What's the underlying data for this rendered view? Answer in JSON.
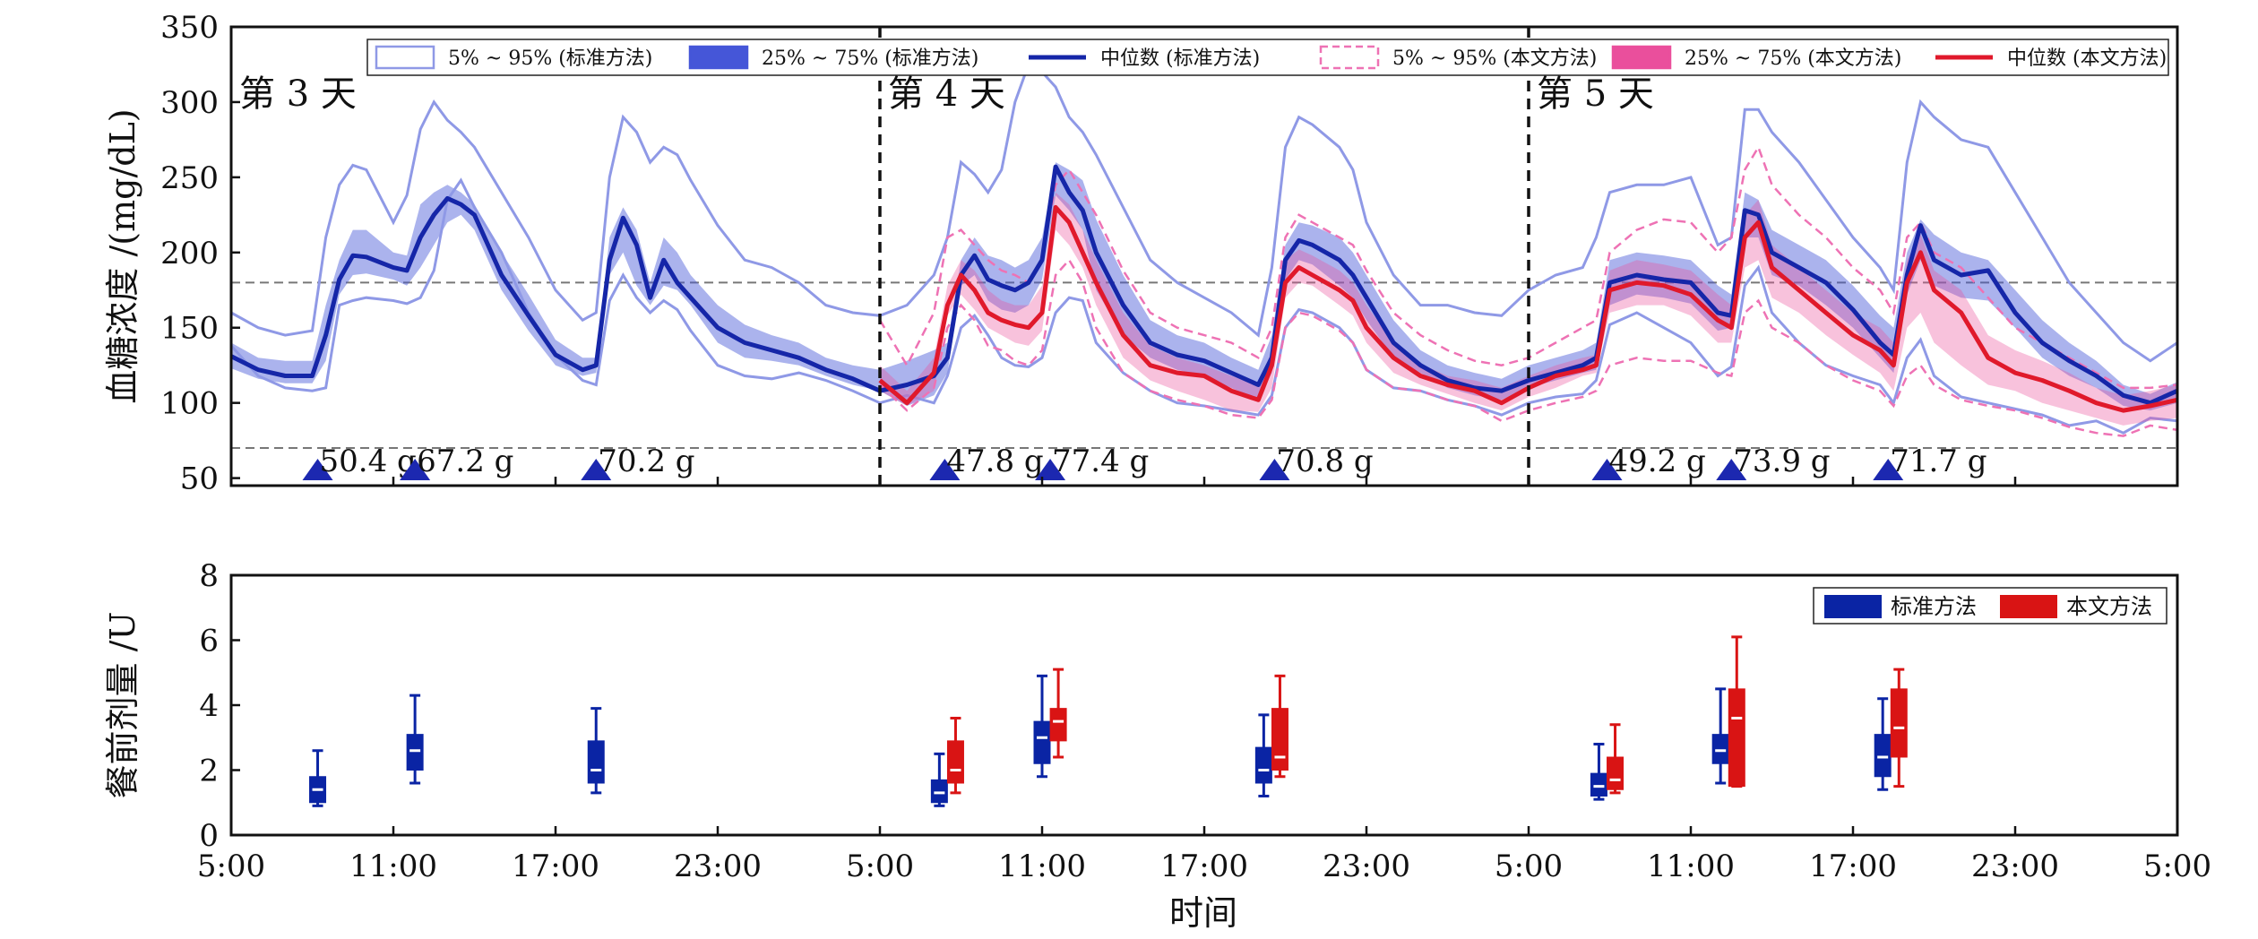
{
  "colors": {
    "std_band95": "#8f99e6",
    "std_band50": "#4556d8",
    "std_median": "#1526a8",
    "new_band95": "#ee72b4",
    "new_band50": "#ea4f9c",
    "new_median": "#e0192b",
    "box_std": "#0a24a4",
    "box_new": "#d91414",
    "meal_marker": "#1c28b0",
    "guide_line": "#777777"
  },
  "chart_data": [
    {
      "type": "area",
      "ylabel": "血糖浓度 /(mg/dL)",
      "ylim": [
        45,
        350
      ],
      "yticks": [
        50,
        100,
        150,
        200,
        250,
        300,
        350
      ],
      "hlines": [
        70,
        180
      ],
      "day_dividers": [
        24,
        48
      ],
      "day_labels": [
        {
          "label": "第 3 天",
          "x": 0.3
        },
        {
          "label": "第 4 天",
          "x": 24.3
        },
        {
          "label": "第 5 天",
          "x": 48.3
        }
      ],
      "legend": {
        "position": "top",
        "entries": [
          "5% ~ 95% (标准方法)",
          "25% ~ 75% (标准方法)",
          "中位数 (标准方法)",
          "5% ~ 95% (本文方法)",
          "25% ~ 75% (本文方法)",
          "中位数 (本文方法)"
        ]
      },
      "meals": [
        {
          "x": 3.2,
          "label": "50.4 g"
        },
        {
          "x": 6.8,
          "label": "67.2 g"
        },
        {
          "x": 13.5,
          "label": "70.2 g"
        },
        {
          "x": 26.4,
          "label": "47.8 g"
        },
        {
          "x": 30.3,
          "label": "77.4 g"
        },
        {
          "x": 38.6,
          "label": "70.8 g"
        },
        {
          "x": 50.9,
          "label": "49.2 g"
        },
        {
          "x": 55.5,
          "label": "73.9 g"
        },
        {
          "x": 61.3,
          "label": "71.7 g"
        }
      ],
      "standard_method": {
        "x": [
          0,
          1,
          2,
          3,
          3.5,
          4,
          4.5,
          5,
          6,
          6.5,
          7,
          7.5,
          8,
          8.5,
          9,
          10,
          11,
          12,
          13,
          13.5,
          14,
          14.5,
          15,
          15.5,
          16,
          16.5,
          17,
          18,
          19,
          20,
          21,
          22,
          23,
          24,
          25,
          26,
          26.5,
          27,
          27.5,
          28,
          28.5,
          29,
          29.5,
          30,
          30.5,
          31,
          31.5,
          32,
          33,
          34,
          35,
          36,
          37,
          38,
          38.5,
          39,
          39.5,
          40,
          41,
          41.5,
          42,
          43,
          44,
          45,
          46,
          47,
          48,
          49,
          50,
          50.5,
          51,
          52,
          53,
          54,
          55,
          55.5,
          56,
          56.5,
          57,
          58,
          59,
          60,
          61,
          61.5,
          62,
          62.5,
          63,
          64,
          65,
          66,
          67,
          68,
          69,
          70,
          71,
          72
        ],
        "p5": [
          138,
          118,
          110,
          108,
          110,
          165,
          168,
          170,
          168,
          166,
          170,
          188,
          235,
          248,
          230,
          200,
          160,
          132,
          115,
          112,
          168,
          185,
          170,
          160,
          168,
          162,
          148,
          125,
          118,
          116,
          120,
          115,
          108,
          100,
          105,
          100,
          118,
          150,
          158,
          145,
          130,
          125,
          124,
          130,
          160,
          170,
          168,
          140,
          120,
          108,
          100,
          98,
          95,
          92,
          105,
          150,
          162,
          160,
          150,
          140,
          122,
          110,
          108,
          102,
          98,
          92,
          100,
          104,
          106,
          115,
          152,
          160,
          150,
          140,
          118,
          124,
          178,
          190,
          160,
          140,
          125,
          118,
          112,
          100,
          130,
          142,
          118,
          104,
          100,
          96,
          92,
          85,
          88,
          80,
          90,
          88
        ],
        "p25": [
          123,
          116,
          113,
          113,
          128,
          172,
          185,
          186,
          182,
          178,
          190,
          205,
          220,
          225,
          215,
          175,
          148,
          125,
          118,
          120,
          185,
          200,
          178,
          165,
          178,
          175,
          165,
          140,
          130,
          128,
          125,
          118,
          112,
          108,
          98,
          105,
          120,
          178,
          185,
          168,
          162,
          160,
          165,
          182,
          238,
          228,
          215,
          175,
          145,
          130,
          122,
          118,
          110,
          102,
          120,
          182,
          195,
          192,
          178,
          170,
          155,
          130,
          120,
          110,
          105,
          102,
          110,
          115,
          120,
          122,
          165,
          172,
          170,
          166,
          148,
          150,
          210,
          210,
          185,
          178,
          165,
          150,
          130,
          120,
          172,
          195,
          178,
          170,
          168,
          150,
          130,
          118,
          110,
          98,
          95,
          100
        ],
        "median": [
          131,
          122,
          118,
          118,
          145,
          182,
          198,
          197,
          190,
          188,
          210,
          225,
          236,
          232,
          225,
          185,
          158,
          132,
          122,
          125,
          195,
          223,
          205,
          170,
          195,
          180,
          170,
          150,
          140,
          135,
          130,
          122,
          116,
          108,
          112,
          118,
          130,
          185,
          198,
          182,
          178,
          175,
          180,
          195,
          257,
          240,
          228,
          200,
          165,
          140,
          132,
          128,
          120,
          112,
          130,
          195,
          208,
          205,
          195,
          185,
          170,
          140,
          125,
          115,
          110,
          108,
          115,
          120,
          125,
          130,
          180,
          185,
          182,
          180,
          160,
          158,
          228,
          225,
          200,
          190,
          180,
          162,
          140,
          132,
          185,
          218,
          195,
          185,
          188,
          160,
          140,
          128,
          118,
          105,
          100,
          108
        ],
        "p75": [
          140,
          130,
          128,
          128,
          165,
          195,
          215,
          215,
          200,
          198,
          232,
          240,
          245,
          240,
          232,
          200,
          172,
          142,
          130,
          130,
          210,
          230,
          215,
          180,
          210,
          200,
          185,
          165,
          152,
          145,
          140,
          130,
          125,
          122,
          128,
          135,
          140,
          195,
          210,
          198,
          195,
          190,
          195,
          210,
          260,
          255,
          248,
          222,
          185,
          155,
          145,
          140,
          130,
          122,
          145,
          205,
          220,
          218,
          210,
          200,
          185,
          155,
          135,
          125,
          120,
          116,
          125,
          130,
          135,
          140,
          195,
          200,
          198,
          195,
          178,
          172,
          240,
          235,
          215,
          205,
          195,
          178,
          158,
          150,
          200,
          222,
          212,
          200,
          195,
          175,
          155,
          140,
          128,
          112,
          106,
          114
        ],
        "p95": [
          160,
          150,
          145,
          148,
          210,
          245,
          258,
          255,
          220,
          238,
          282,
          300,
          288,
          280,
          270,
          240,
          210,
          175,
          155,
          160,
          250,
          290,
          280,
          260,
          270,
          265,
          248,
          218,
          195,
          190,
          180,
          165,
          160,
          158,
          165,
          185,
          210,
          260,
          252,
          240,
          255,
          300,
          325,
          320,
          310,
          290,
          280,
          265,
          230,
          195,
          180,
          170,
          160,
          145,
          190,
          270,
          290,
          285,
          270,
          255,
          220,
          185,
          165,
          165,
          160,
          158,
          175,
          185,
          190,
          210,
          240,
          245,
          245,
          250,
          205,
          210,
          295,
          295,
          280,
          260,
          235,
          210,
          190,
          175,
          260,
          300,
          290,
          275,
          270,
          240,
          210,
          180,
          160,
          140,
          128,
          140
        ]
      },
      "proposed_method": {
        "x": [
          24,
          25,
          26,
          26.5,
          27,
          27.5,
          28,
          28.5,
          29,
          29.5,
          30,
          30.5,
          31,
          31.5,
          32,
          33,
          34,
          35,
          36,
          37,
          38,
          38.5,
          39,
          39.5,
          40,
          41,
          41.5,
          42,
          43,
          44,
          45,
          46,
          47,
          48,
          49,
          50,
          50.5,
          51,
          52,
          53,
          54,
          55,
          55.5,
          56,
          56.5,
          57,
          58,
          59,
          60,
          61,
          61.5,
          62,
          62.5,
          63,
          64,
          65,
          66,
          67,
          68,
          69,
          70,
          71,
          72
        ],
        "p5": [
          112,
          95,
          110,
          150,
          165,
          155,
          138,
          135,
          128,
          125,
          135,
          185,
          195,
          180,
          150,
          120,
          108,
          102,
          98,
          92,
          90,
          102,
          150,
          160,
          158,
          148,
          140,
          122,
          110,
          108,
          102,
          98,
          88,
          95,
          100,
          104,
          108,
          125,
          130,
          128,
          128,
          120,
          118,
          160,
          168,
          150,
          140,
          125,
          115,
          108,
          98,
          118,
          125,
          112,
          102,
          98,
          95,
          90,
          84,
          80,
          78,
          85,
          82
        ],
        "p25": [
          108,
          98,
          108,
          158,
          172,
          162,
          150,
          145,
          140,
          138,
          148,
          215,
          205,
          190,
          165,
          130,
          115,
          108,
          102,
          95,
          94,
          110,
          170,
          180,
          178,
          165,
          158,
          140,
          120,
          112,
          106,
          100,
          95,
          104,
          110,
          118,
          120,
          160,
          165,
          165,
          158,
          140,
          140,
          190,
          195,
          170,
          160,
          145,
          132,
          120,
          108,
          150,
          160,
          140,
          125,
          112,
          108,
          100,
          95,
          90,
          85,
          88,
          90
        ],
        "median": [
          115,
          100,
          120,
          165,
          185,
          175,
          160,
          155,
          152,
          150,
          160,
          230,
          220,
          200,
          180,
          145,
          125,
          120,
          118,
          108,
          102,
          125,
          180,
          190,
          185,
          175,
          168,
          150,
          130,
          118,
          112,
          108,
          100,
          110,
          118,
          122,
          125,
          175,
          180,
          178,
          172,
          155,
          150,
          210,
          220,
          190,
          175,
          160,
          145,
          135,
          125,
          180,
          200,
          175,
          160,
          130,
          120,
          115,
          108,
          100,
          95,
          98,
          102
        ],
        "p75": [
          125,
          108,
          130,
          178,
          195,
          188,
          175,
          168,
          165,
          165,
          178,
          240,
          232,
          215,
          195,
          160,
          138,
          130,
          125,
          118,
          112,
          135,
          195,
          202,
          198,
          188,
          180,
          165,
          140,
          126,
          118,
          115,
          110,
          118,
          125,
          130,
          132,
          188,
          195,
          192,
          188,
          172,
          165,
          225,
          235,
          205,
          190,
          175,
          160,
          150,
          140,
          195,
          212,
          188,
          175,
          145,
          135,
          128,
          120,
          110,
          105,
          108,
          112
        ],
        "p95": [
          155,
          125,
          160,
          210,
          215,
          205,
          195,
          188,
          185,
          180,
          195,
          245,
          255,
          240,
          225,
          188,
          160,
          150,
          145,
          140,
          130,
          150,
          210,
          225,
          220,
          210,
          205,
          188,
          160,
          145,
          135,
          128,
          125,
          130,
          140,
          150,
          155,
          200,
          215,
          222,
          220,
          200,
          210,
          255,
          270,
          245,
          225,
          210,
          190,
          175,
          160,
          210,
          220,
          200,
          190,
          170,
          150,
          140,
          130,
          120,
          110,
          110,
          112
        ]
      },
      "series": [
        {
          "name": "5% ~ 95% (标准方法)"
        },
        {
          "name": "25% ~ 75% (标准方法)"
        },
        {
          "name": "中位数 (标准方法)"
        },
        {
          "name": "5% ~ 95% (本文方法)"
        },
        {
          "name": "25% ~ 75% (本文方法)"
        },
        {
          "name": "中位数 (本文方法)"
        }
      ]
    },
    {
      "type": "box",
      "xlabel": "时间",
      "ylabel": "餐前剂量 /U",
      "ylim": [
        0,
        8
      ],
      "yticks": [
        0,
        2,
        4,
        6,
        8
      ],
      "xlim": [
        0,
        72
      ],
      "xticks": [
        0,
        6,
        12,
        18,
        24,
        30,
        36,
        42,
        48,
        54,
        60,
        66,
        72
      ],
      "xtick_labels": [
        "5:00",
        "11:00",
        "17:00",
        "23:00",
        "5:00",
        "11:00",
        "17:00",
        "23:00",
        "5:00",
        "11:00",
        "17:00",
        "23:00",
        "5:00"
      ],
      "legend": {
        "position": "top-right",
        "entries": [
          "标准方法",
          "本文方法"
        ]
      },
      "standard_method": [
        {
          "x": 3.2,
          "min": 0.9,
          "q1": 1.0,
          "median": 1.4,
          "q3": 1.8,
          "max": 2.6
        },
        {
          "x": 6.8,
          "min": 1.6,
          "q1": 2.0,
          "median": 2.6,
          "q3": 3.1,
          "max": 4.3
        },
        {
          "x": 13.5,
          "min": 1.3,
          "q1": 1.6,
          "median": 2.0,
          "q3": 2.9,
          "max": 3.9
        },
        {
          "x": 26.2,
          "min": 0.9,
          "q1": 1.0,
          "median": 1.3,
          "q3": 1.7,
          "max": 2.5
        },
        {
          "x": 30.0,
          "min": 1.8,
          "q1": 2.2,
          "median": 3.0,
          "q3": 3.5,
          "max": 4.9
        },
        {
          "x": 38.2,
          "min": 1.2,
          "q1": 1.6,
          "median": 2.0,
          "q3": 2.7,
          "max": 3.7
        },
        {
          "x": 50.6,
          "min": 1.1,
          "q1": 1.2,
          "median": 1.5,
          "q3": 1.9,
          "max": 2.8
        },
        {
          "x": 55.1,
          "min": 1.6,
          "q1": 2.2,
          "median": 2.6,
          "q3": 3.1,
          "max": 4.5
        },
        {
          "x": 61.1,
          "min": 1.4,
          "q1": 1.8,
          "median": 2.4,
          "q3": 3.1,
          "max": 4.2
        }
      ],
      "proposed_method": [
        {
          "x": 26.8,
          "min": 1.3,
          "q1": 1.6,
          "median": 2.0,
          "q3": 2.9,
          "max": 3.6
        },
        {
          "x": 30.6,
          "min": 2.4,
          "q1": 2.9,
          "median": 3.5,
          "q3": 3.9,
          "max": 5.1
        },
        {
          "x": 38.8,
          "min": 1.8,
          "q1": 2.0,
          "median": 2.4,
          "q3": 3.9,
          "max": 4.9
        },
        {
          "x": 51.2,
          "min": 1.3,
          "q1": 1.4,
          "median": 1.7,
          "q3": 2.4,
          "max": 3.4
        },
        {
          "x": 55.7,
          "min": 1.5,
          "q1": 1.5,
          "median": 3.6,
          "q3": 4.5,
          "max": 6.1
        },
        {
          "x": 61.7,
          "min": 1.5,
          "q1": 2.4,
          "median": 3.3,
          "q3": 4.5,
          "max": 5.1
        }
      ]
    }
  ]
}
